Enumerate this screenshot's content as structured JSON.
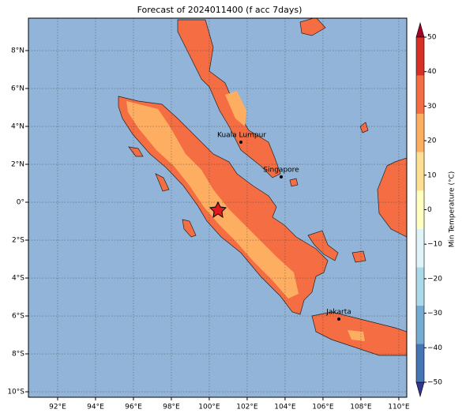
{
  "map": {
    "title": "Forecast of 2024011400 (f acc 7days)",
    "lon_range": [
      90.46,
      110.42
    ],
    "lat_range": [
      -10.29,
      9.71
    ],
    "lon_ticks": [
      {
        "value": 92,
        "label": "92°E"
      },
      {
        "value": 94,
        "label": "94°E"
      },
      {
        "value": 96,
        "label": "96°E"
      },
      {
        "value": 98,
        "label": "98°E"
      },
      {
        "value": 100,
        "label": "100°E"
      },
      {
        "value": 102,
        "label": "102°E"
      },
      {
        "value": 104,
        "label": "104°E"
      },
      {
        "value": 106,
        "label": "106°E"
      },
      {
        "value": 108,
        "label": "108°E"
      },
      {
        "value": 110,
        "label": "110°E"
      }
    ],
    "lat_ticks": [
      {
        "value": 8,
        "label": "8°N"
      },
      {
        "value": 6,
        "label": "6°N"
      },
      {
        "value": 4,
        "label": "4°N"
      },
      {
        "value": 2,
        "label": "2°N"
      },
      {
        "value": 0,
        "label": "0°"
      },
      {
        "value": -2,
        "label": "2°S"
      },
      {
        "value": -4,
        "label": "4°S"
      },
      {
        "value": -6,
        "label": "6°S"
      },
      {
        "value": -8,
        "label": "8°S"
      },
      {
        "value": -10,
        "label": "10°S"
      }
    ],
    "cities": [
      "Kuala Lumpur",
      "Singapore",
      "Jakarta"
    ],
    "colorbar": {
      "label": "Min Temperature (°C)",
      "range": [
        -50,
        50
      ],
      "ticks": [
        {
          "value": -50,
          "label": "−50"
        },
        {
          "value": -40,
          "label": "−40"
        },
        {
          "value": -30,
          "label": "−30"
        },
        {
          "value": -20,
          "label": "−20"
        },
        {
          "value": -10,
          "label": "−10"
        },
        0,
        10,
        20,
        30,
        40,
        50
      ],
      "colors": [
        "#313695",
        "#4575b4",
        "#74add1",
        "#abd9e9",
        "#e0f3f8",
        "#ffffbf",
        "#fee090",
        "#fdae61",
        "#f46d43",
        "#d73027",
        "#a50026"
      ]
    }
  }
}
